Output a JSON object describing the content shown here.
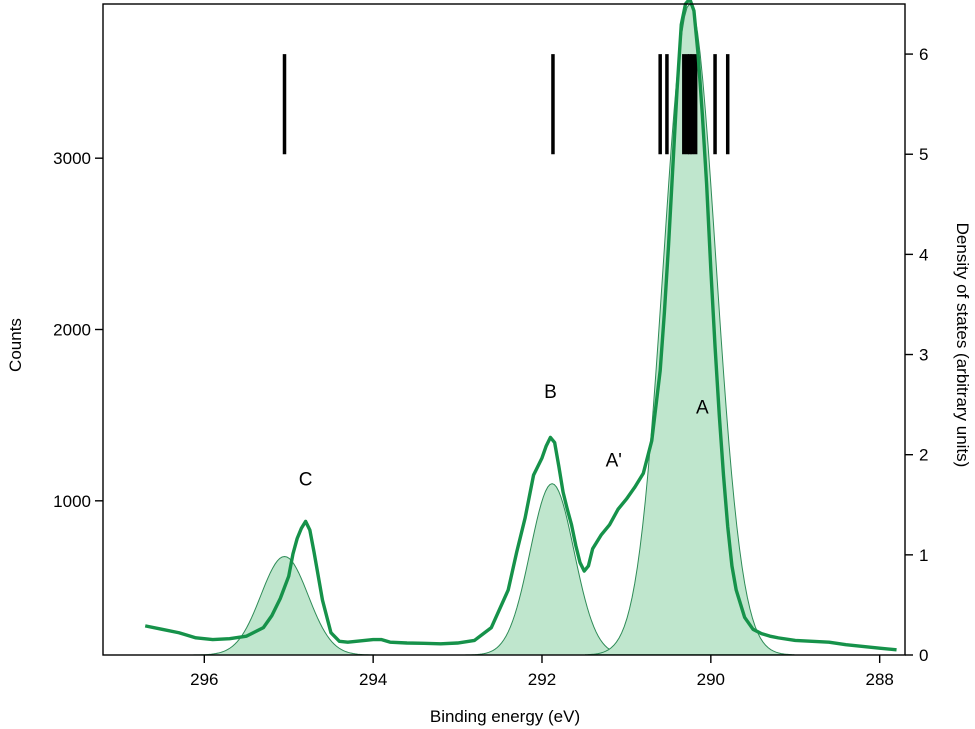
{
  "chart_data": {
    "type": "line",
    "xlabel": "Binding energy (eV)",
    "ylabel_left": "Counts",
    "ylabel_right": "Density of states (arbitrary units)",
    "x_reversed": true,
    "xlim": [
      297.2,
      287.7
    ],
    "ylim_left": [
      100,
      3900
    ],
    "ylim_right": [
      0,
      6.5
    ],
    "x_ticks": [
      296,
      294,
      292,
      290,
      288
    ],
    "y_left_ticks": [
      1000,
      2000,
      3000
    ],
    "y_right_ticks": [
      0,
      1,
      2,
      3,
      4,
      5,
      6
    ],
    "grid": false,
    "annotations": [
      {
        "text": "C",
        "x": 294.8,
        "y": 1090
      },
      {
        "text": "B",
        "x": 291.9,
        "y": 1600
      },
      {
        "text": "A'",
        "x": 291.15,
        "y": 1200
      },
      {
        "text": "A",
        "x": 290.1,
        "y": 1510
      }
    ],
    "series": [
      {
        "kind": "measured",
        "axis": "left",
        "color": "#16924a",
        "x": [
          296.7,
          296.5,
          296.3,
          296.1,
          295.9,
          295.7,
          295.5,
          295.3,
          295.2,
          295.1,
          295.0,
          294.95,
          294.9,
          294.85,
          294.8,
          294.75,
          294.7,
          294.6,
          294.5,
          294.4,
          294.3,
          294.2,
          294.0,
          293.9,
          293.8,
          293.6,
          293.4,
          293.2,
          293.0,
          292.8,
          292.6,
          292.4,
          292.3,
          292.2,
          292.1,
          292.0,
          291.95,
          291.9,
          291.85,
          291.8,
          291.75,
          291.7,
          291.65,
          291.6,
          291.55,
          291.5,
          291.45,
          291.4,
          291.3,
          291.2,
          291.1,
          291.0,
          290.9,
          290.8,
          290.7,
          290.6,
          290.55,
          290.5,
          290.45,
          290.4,
          290.35,
          290.3,
          290.25,
          290.2,
          290.15,
          290.1,
          290.05,
          290.0,
          289.95,
          289.9,
          289.85,
          289.8,
          289.75,
          289.7,
          289.6,
          289.5,
          289.4,
          289.3,
          289.2,
          289.0,
          288.8,
          288.6,
          288.4,
          288.2,
          288.0,
          287.8
        ],
        "y": [
          270,
          250,
          230,
          200,
          190,
          195,
          210,
          260,
          330,
          430,
          560,
          690,
          780,
          840,
          880,
          830,
          700,
          420,
          230,
          180,
          175,
          180,
          190,
          190,
          175,
          170,
          168,
          165,
          170,
          185,
          260,
          480,
          700,
          900,
          1150,
          1250,
          1320,
          1370,
          1340,
          1200,
          1050,
          950,
          860,
          740,
          640,
          590,
          620,
          720,
          800,
          860,
          950,
          1010,
          1080,
          1160,
          1350,
          1760,
          2100,
          2500,
          2950,
          3400,
          3780,
          3900,
          3930,
          3860,
          3600,
          3250,
          2850,
          2350,
          1900,
          1500,
          1150,
          850,
          620,
          480,
          320,
          250,
          225,
          210,
          200,
          185,
          180,
          175,
          160,
          150,
          140,
          130
        ]
      },
      {
        "kind": "gaussian-fill",
        "axis": "left",
        "color": "#bfe6cd",
        "peaks": [
          {
            "center": 295.05,
            "height": 575,
            "sigma": 0.28
          },
          {
            "center": 291.88,
            "height": 1000,
            "sigma": 0.26
          },
          {
            "center": 290.25,
            "height": 3800,
            "sigma": 0.31
          }
        ],
        "baseline": 100
      },
      {
        "kind": "state-sticks",
        "axis": "right",
        "color": "#000000",
        "positions": [
          295.05,
          291.87,
          290.6,
          290.52,
          290.32,
          290.28,
          290.25,
          290.22,
          290.18,
          289.95,
          289.8
        ],
        "range": [
          5.0,
          6.0
        ]
      }
    ]
  }
}
